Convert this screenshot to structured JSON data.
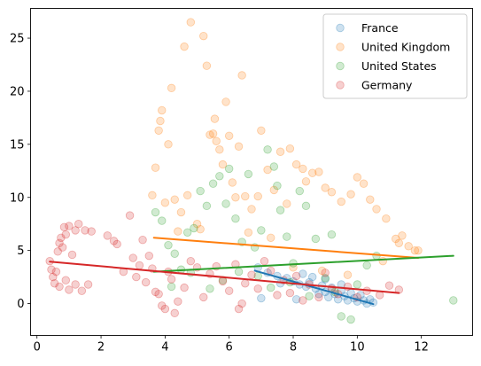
{
  "chart_data": {
    "type": "scatter",
    "title": "",
    "xlabel": "",
    "ylabel": "",
    "xlim": [
      -0.2,
      13.6
    ],
    "ylim": [
      -3.0,
      27.8
    ],
    "xticks": [
      0,
      2,
      4,
      6,
      8,
      10,
      12
    ],
    "yticks": [
      0,
      5,
      10,
      15,
      20,
      25
    ],
    "grid": false,
    "legend": {
      "placement": "top-right"
    },
    "series": [
      {
        "name": "France",
        "color": "#1f77b4",
        "points": [
          [
            6.9,
            3.4
          ],
          [
            7.2,
            2.9
          ],
          [
            7.5,
            2.6
          ],
          [
            7.8,
            2.4
          ],
          [
            8.0,
            2.1
          ],
          [
            8.2,
            1.8
          ],
          [
            8.4,
            1.6
          ],
          [
            8.5,
            2.0
          ],
          [
            8.7,
            1.4
          ],
          [
            8.8,
            0.9
          ],
          [
            8.9,
            1.7
          ],
          [
            9.0,
            1.1
          ],
          [
            9.1,
            0.6
          ],
          [
            9.2,
            1.5
          ],
          [
            9.3,
            0.9
          ],
          [
            9.4,
            0.4
          ],
          [
            9.5,
            1.2
          ],
          [
            9.6,
            0.7
          ],
          [
            9.7,
            0.3
          ],
          [
            9.8,
            1.0
          ],
          [
            9.9,
            0.5
          ],
          [
            10.0,
            0.2
          ],
          [
            10.1,
            0.8
          ],
          [
            10.2,
            0.3
          ],
          [
            10.3,
            0.0
          ],
          [
            10.4,
            0.4
          ],
          [
            10.5,
            0.1
          ],
          [
            8.3,
            2.8
          ],
          [
            8.6,
            2.5
          ],
          [
            9.0,
            2.3
          ],
          [
            9.5,
            1.8
          ],
          [
            7.0,
            0.5
          ],
          [
            7.6,
            1.9
          ],
          [
            8.1,
            0.4
          ]
        ],
        "trend": [
          [
            6.8,
            3.1
          ],
          [
            10.5,
            -0.05
          ]
        ]
      },
      {
        "name": "United Kingdom",
        "color": "#ff7f0e",
        "points": [
          [
            3.7,
            12.8
          ],
          [
            3.8,
            16.3
          ],
          [
            3.85,
            17.2
          ],
          [
            3.9,
            18.2
          ],
          [
            4.0,
            9.5
          ],
          [
            4.1,
            15.0
          ],
          [
            4.2,
            20.3
          ],
          [
            4.3,
            9.8
          ],
          [
            4.5,
            8.6
          ],
          [
            4.6,
            24.2
          ],
          [
            4.7,
            10.2
          ],
          [
            4.8,
            26.5
          ],
          [
            5.0,
            7.5
          ],
          [
            5.2,
            25.2
          ],
          [
            5.3,
            22.4
          ],
          [
            5.4,
            15.9
          ],
          [
            5.5,
            16.0
          ],
          [
            5.55,
            17.4
          ],
          [
            5.6,
            15.3
          ],
          [
            5.7,
            14.5
          ],
          [
            5.8,
            13.1
          ],
          [
            5.9,
            19.0
          ],
          [
            6.0,
            15.8
          ],
          [
            6.1,
            11.4
          ],
          [
            6.2,
            10.0
          ],
          [
            6.3,
            14.8
          ],
          [
            6.4,
            21.5
          ],
          [
            6.5,
            10.1
          ],
          [
            6.7,
            8.9
          ],
          [
            6.9,
            10.1
          ],
          [
            7.0,
            16.3
          ],
          [
            7.2,
            12.6
          ],
          [
            7.4,
            10.7
          ],
          [
            7.6,
            14.3
          ],
          [
            7.8,
            9.4
          ],
          [
            7.9,
            14.6
          ],
          [
            8.1,
            13.1
          ],
          [
            8.3,
            12.7
          ],
          [
            8.4,
            11.5
          ],
          [
            8.6,
            12.3
          ],
          [
            8.8,
            12.4
          ],
          [
            9.0,
            10.9
          ],
          [
            9.2,
            10.5
          ],
          [
            9.5,
            9.6
          ],
          [
            9.8,
            10.3
          ],
          [
            10.0,
            11.9
          ],
          [
            10.2,
            11.3
          ],
          [
            10.4,
            9.8
          ],
          [
            10.6,
            8.9
          ],
          [
            10.9,
            8.0
          ],
          [
            11.2,
            6.1
          ],
          [
            11.4,
            6.4
          ],
          [
            11.6,
            5.4
          ],
          [
            11.8,
            5.0
          ],
          [
            11.9,
            5.0
          ],
          [
            3.6,
            10.2
          ],
          [
            4.4,
            6.8
          ],
          [
            5.1,
            7.0
          ],
          [
            6.6,
            6.7
          ],
          [
            7.3,
            6.2
          ],
          [
            8.0,
            3.4
          ],
          [
            8.9,
            3.1
          ],
          [
            9.7,
            2.7
          ],
          [
            10.8,
            4.0
          ],
          [
            11.3,
            5.7
          ]
        ],
        "trend": [
          [
            3.65,
            6.2
          ],
          [
            11.9,
            4.3
          ]
        ]
      },
      {
        "name": "United States",
        "color": "#2ca02c",
        "points": [
          [
            3.7,
            8.6
          ],
          [
            3.9,
            7.8
          ],
          [
            4.1,
            5.5
          ],
          [
            4.3,
            4.7
          ],
          [
            4.5,
            3.2
          ],
          [
            4.7,
            6.7
          ],
          [
            4.9,
            7.1
          ],
          [
            5.1,
            10.6
          ],
          [
            5.3,
            9.2
          ],
          [
            5.5,
            11.3
          ],
          [
            5.7,
            12.0
          ],
          [
            5.9,
            9.4
          ],
          [
            6.0,
            12.7
          ],
          [
            6.2,
            8.0
          ],
          [
            6.4,
            5.8
          ],
          [
            6.6,
            12.2
          ],
          [
            6.8,
            5.3
          ],
          [
            7.0,
            6.9
          ],
          [
            7.2,
            14.5
          ],
          [
            7.4,
            12.9
          ],
          [
            7.5,
            11.1
          ],
          [
            7.6,
            8.8
          ],
          [
            7.8,
            6.3
          ],
          [
            8.0,
            3.8
          ],
          [
            8.2,
            10.6
          ],
          [
            8.4,
            9.2
          ],
          [
            8.7,
            6.1
          ],
          [
            9.0,
            2.4
          ],
          [
            9.2,
            6.5
          ],
          [
            9.5,
            -1.2
          ],
          [
            9.8,
            -1.5
          ],
          [
            10.3,
            3.6
          ],
          [
            10.6,
            4.5
          ],
          [
            13.0,
            0.3
          ],
          [
            4.2,
            1.6
          ],
          [
            4.8,
            2.9
          ],
          [
            5.4,
            1.4
          ],
          [
            5.8,
            2.2
          ],
          [
            6.3,
            3.0
          ],
          [
            6.9,
            2.6
          ],
          [
            7.3,
            1.5
          ],
          [
            7.9,
            2.0
          ],
          [
            8.5,
            0.7
          ],
          [
            9.3,
            1.1
          ],
          [
            10.0,
            1.8
          ]
        ],
        "trend": [
          [
            3.65,
            3.0
          ],
          [
            13.0,
            4.5
          ]
        ]
      },
      {
        "name": "Germany",
        "color": "#d62728",
        "points": [
          [
            0.4,
            4.0
          ],
          [
            0.45,
            3.2
          ],
          [
            0.5,
            2.5
          ],
          [
            0.55,
            1.9
          ],
          [
            0.6,
            3.0
          ],
          [
            0.65,
            4.9
          ],
          [
            0.7,
            5.7
          ],
          [
            0.75,
            6.2
          ],
          [
            0.8,
            5.3
          ],
          [
            0.85,
            7.2
          ],
          [
            0.9,
            6.5
          ],
          [
            1.0,
            7.3
          ],
          [
            1.1,
            4.6
          ],
          [
            1.2,
            6.9
          ],
          [
            1.3,
            7.5
          ],
          [
            1.5,
            6.9
          ],
          [
            1.7,
            6.8
          ],
          [
            0.7,
            1.6
          ],
          [
            0.9,
            2.2
          ],
          [
            1.0,
            1.3
          ],
          [
            1.2,
            1.8
          ],
          [
            1.4,
            1.2
          ],
          [
            1.6,
            1.8
          ],
          [
            2.2,
            6.4
          ],
          [
            2.4,
            5.9
          ],
          [
            2.5,
            5.6
          ],
          [
            2.7,
            3.0
          ],
          [
            2.9,
            8.3
          ],
          [
            3.0,
            4.3
          ],
          [
            3.1,
            2.5
          ],
          [
            3.2,
            3.6
          ],
          [
            3.3,
            6.0
          ],
          [
            3.4,
            2.0
          ],
          [
            3.5,
            4.5
          ],
          [
            3.6,
            3.3
          ],
          [
            3.7,
            1.1
          ],
          [
            3.8,
            0.9
          ],
          [
            3.9,
            -0.2
          ],
          [
            4.0,
            -0.5
          ],
          [
            4.1,
            3.0
          ],
          [
            4.2,
            2.3
          ],
          [
            4.3,
            -0.9
          ],
          [
            4.4,
            0.2
          ],
          [
            4.6,
            1.5
          ],
          [
            4.8,
            4.0
          ],
          [
            5.0,
            3.4
          ],
          [
            5.2,
            0.6
          ],
          [
            5.4,
            2.8
          ],
          [
            5.6,
            3.5
          ],
          [
            5.8,
            2.1
          ],
          [
            6.0,
            1.2
          ],
          [
            6.2,
            3.7
          ],
          [
            6.3,
            -0.5
          ],
          [
            6.4,
            0.0
          ],
          [
            6.5,
            1.9
          ],
          [
            6.7,
            2.7
          ],
          [
            6.9,
            1.4
          ],
          [
            7.1,
            4.0
          ],
          [
            7.3,
            3.1
          ],
          [
            7.5,
            0.8
          ],
          [
            7.7,
            2.2
          ],
          [
            7.9,
            1.0
          ],
          [
            8.1,
            2.6
          ],
          [
            8.3,
            0.3
          ],
          [
            8.5,
            1.8
          ],
          [
            8.8,
            0.6
          ],
          [
            9.0,
            2.9
          ],
          [
            9.2,
            1.4
          ],
          [
            9.4,
            0.9
          ],
          [
            9.7,
            1.6
          ],
          [
            10.0,
            0.6
          ],
          [
            10.3,
            1.2
          ],
          [
            10.7,
            0.8
          ],
          [
            11.0,
            1.7
          ],
          [
            11.3,
            1.3
          ]
        ],
        "trend": [
          [
            0.4,
            3.95
          ],
          [
            11.3,
            1.0
          ]
        ]
      }
    ]
  }
}
